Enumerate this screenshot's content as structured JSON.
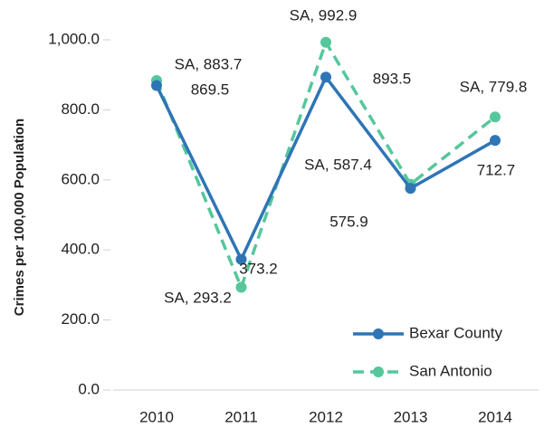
{
  "chart_data": {
    "type": "line",
    "y_label": "Crimes per 100,000 Population",
    "categories": [
      "2010",
      "2011",
      "2012",
      "2013",
      "2014"
    ],
    "series": [
      {
        "name": "Bexar County",
        "color": "#2e75b6",
        "dash": false,
        "values": [
          869.5,
          373.2,
          893.5,
          575.9,
          712.7
        ]
      },
      {
        "name": "San Antonio",
        "color": "#55c79b",
        "dash": true,
        "values": [
          883.7,
          293.2,
          992.9,
          587.4,
          779.8
        ],
        "value_labels": [
          "SA, 883.7",
          "SA, 293.2",
          "SA, 992.9",
          "SA, 587.4",
          "SA, 779.8"
        ]
      }
    ],
    "ylim": [
      0,
      1000
    ],
    "yticks": [
      {
        "value": 0,
        "label": "0.0"
      },
      {
        "value": 200,
        "label": "200.0"
      },
      {
        "value": 400,
        "label": "400.0"
      },
      {
        "value": 600,
        "label": "600.0"
      },
      {
        "value": 800,
        "label": "800.0"
      },
      {
        "value": 1000,
        "label": "1,000.0"
      }
    ],
    "grid": false,
    "legend": "lower right"
  }
}
